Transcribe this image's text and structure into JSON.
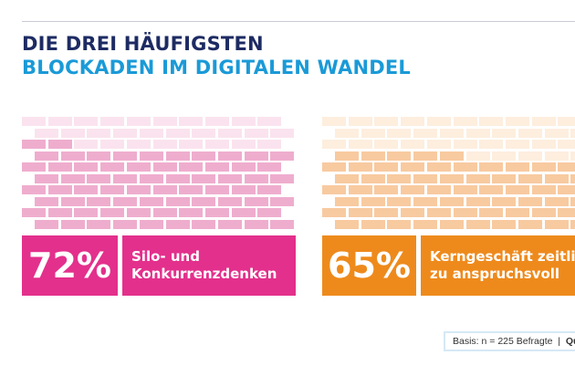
{
  "title": {
    "line1": "DIE DREI HÄUFIGSTEN",
    "line2": "BLOCKADEN IM DIGITALEN WANDEL"
  },
  "colors": {
    "navy": "#1d2b63",
    "blue": "#1a9ad7"
  },
  "items": [
    {
      "percent": "72%",
      "value": 72,
      "label_line1": "Silo- und",
      "label_line2": "Konkurrenzdenken",
      "color": "#e3308c",
      "brick_dark": "#efadce",
      "brick_light": "#fae3ee"
    },
    {
      "percent": "65%",
      "value": 65,
      "label_line1": "Kerngeschäft zeitlich",
      "label_line2": "zu anspruchsvoll",
      "color": "#ee8a1c",
      "brick_dark": "#f8caa0",
      "brick_light": "#fdeede"
    }
  ],
  "footer": {
    "basis": "Basis: n = 225 Befragte  |  ",
    "source": "Que"
  }
}
